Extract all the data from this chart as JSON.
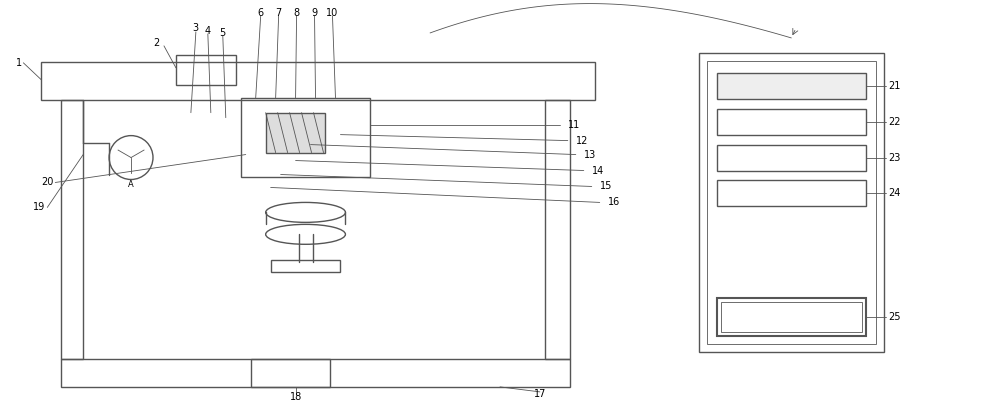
{
  "bg_color": "#ffffff",
  "line_color": "#555555",
  "line_width": 1.0,
  "thin_line": 0.6,
  "fig_width": 10.0,
  "fig_height": 4.03,
  "dpi": 100
}
